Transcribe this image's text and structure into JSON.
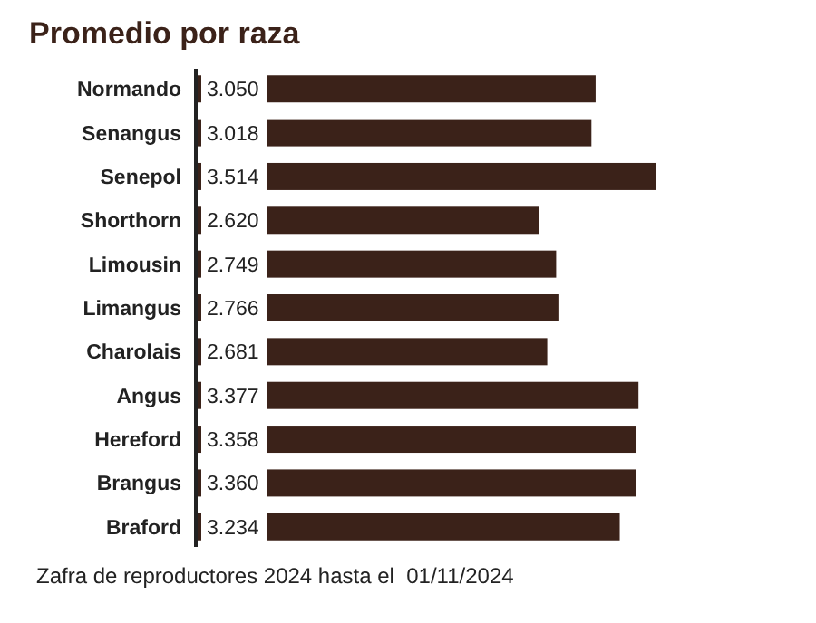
{
  "chart_data": {
    "type": "bar",
    "orientation": "horizontal",
    "title": "Promedio por raza",
    "categories": [
      "Normando",
      "Senangus",
      "Senepol",
      "Shorthorn",
      "Limousin",
      "Limangus",
      "Charolais",
      "Angus",
      "Hereford",
      "Brangus",
      "Braford"
    ],
    "values": [
      3050,
      3018,
      3514,
      2620,
      2749,
      2766,
      2681,
      3377,
      3358,
      3360,
      3234
    ],
    "value_labels": [
      "3.050",
      "3.018",
      "3.514",
      "2.620",
      "2.749",
      "2.766",
      "2.681",
      "3.377",
      "3.358",
      "3.360",
      "3.234"
    ],
    "color": "#3b2219",
    "tick_labels": "y",
    "annotations": [
      "Zafra de reproductores 2024 hasta el  01/11/2024"
    ]
  }
}
